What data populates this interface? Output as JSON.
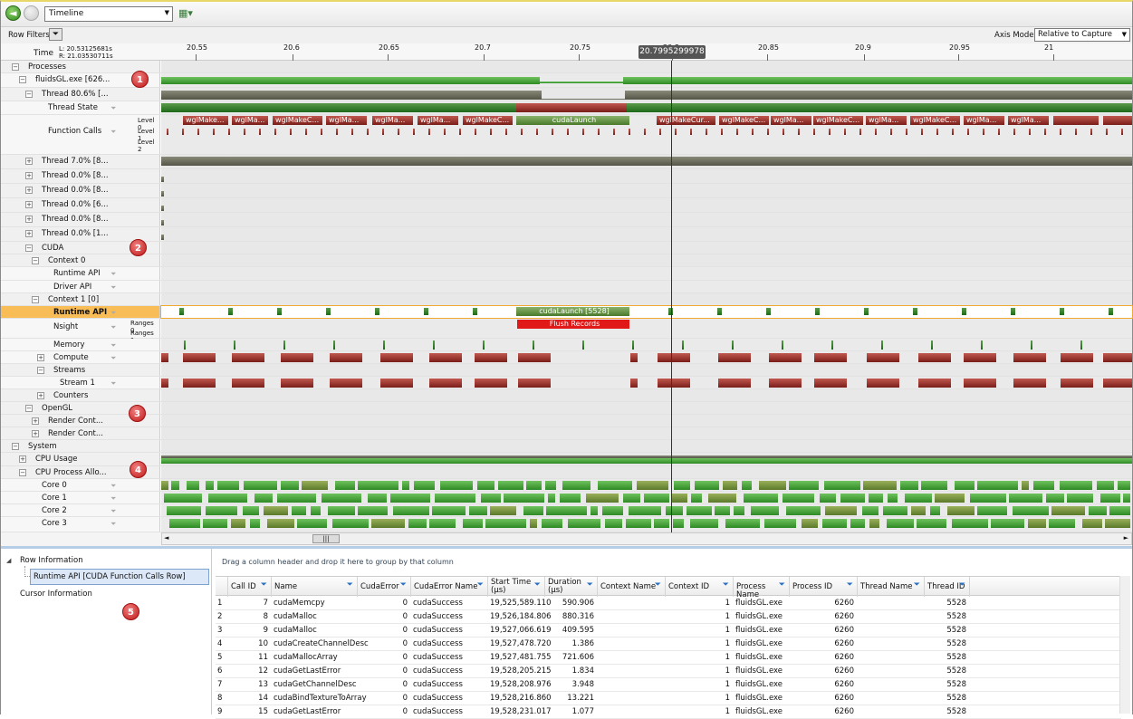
{
  "toolbar": {
    "view_selected": "Timeline"
  },
  "rowfilters": {
    "label": "Row Filters",
    "axis_mode_label": "Axis Mode:",
    "axis_mode_value": "Relative to Capture"
  },
  "timescale": {
    "label": "Time",
    "left": "L: 20.53125681s",
    "right": "R: 21.03530711s",
    "ticks": [
      "20.55",
      "20.6",
      "20.65",
      "20.7",
      "20.75",
      "20.8",
      "20.85",
      "20.9",
      "20.95",
      "21"
    ],
    "cursor": "20.7995299978"
  },
  "rows": {
    "processes": "Processes",
    "fluidsgl": "fluidsGL.exe [626...",
    "thread_main": "Thread 80.6% [...",
    "thread_state": "Thread State",
    "function_calls": "Function Calls",
    "level0": "Level 0",
    "level1": "Level 1",
    "level2": "Level 2",
    "thread_a": "Thread 7.0% [8...",
    "thread_b": "Thread 0.0% [8...",
    "thread_c": "Thread 0.0% [8...",
    "thread_d": "Thread 0.0% [6...",
    "thread_e": "Thread 0.0% [8...",
    "thread_f": "Thread 0.0% [1...",
    "cuda": "CUDA",
    "context0": "Context 0",
    "runtime_api0": "Runtime API",
    "driver_api": "Driver API",
    "context1": "Context 1 [0]",
    "runtime_api1": "Runtime API",
    "nsight": "Nsight",
    "ranges0": "Ranges 0",
    "ranges1": "Ranges 1",
    "memory": "Memory",
    "compute": "Compute",
    "streams": "Streams",
    "stream1": "Stream 1",
    "counters": "Counters",
    "opengl": "OpenGL",
    "render1": "Render Cont...",
    "render2": "Render Cont...",
    "system": "System",
    "cpu_usage": "CPU Usage",
    "cpu_alloc": "CPU Process Allo...",
    "core0": "Core 0",
    "core1": "Core 1",
    "core2": "Core 2",
    "core3": "Core 3"
  },
  "function_call_labels": [
    "wglMake...",
    "wglMa...",
    "wglMakeC...",
    "wglMa...",
    "wglMa...",
    "wglMa...",
    "wglMakeC...",
    "cudaLaunch",
    "wglMakeCur...",
    "wglMakeC...",
    "wglMa...",
    "wglMakeC...",
    "wglMa...",
    "wglMakeC...",
    "wglMa...",
    "wglMa..."
  ],
  "runtime_block": "cudaLaunch [5528]",
  "nsight_block": "Flush Records",
  "badges": [
    "1",
    "2",
    "3",
    "4",
    "5"
  ],
  "bottom": {
    "tree": {
      "row_info": "Row Information",
      "selected": "Runtime API [CUDA Function Calls Row]",
      "cursor_info": "Cursor Information"
    },
    "group_hint": "Drag a column header and drop it here to group by that column",
    "columns": [
      "Call ID",
      "Name",
      "CudaError",
      "CudaError Name",
      "Start Time (μs)",
      "Duration (μs)",
      "Context Name",
      "Context ID",
      "Process Name",
      "Process ID",
      "Thread Name",
      "Thread ID"
    ],
    "rows": [
      [
        "1",
        "7",
        "cudaMemcpy",
        "0",
        "cudaSuccess",
        "19,525,589.110",
        "590.906",
        "",
        "1",
        "fluidsGL.exe",
        "6260",
        "",
        "5528"
      ],
      [
        "2",
        "8",
        "cudaMalloc",
        "0",
        "cudaSuccess",
        "19,526,184.806",
        "880.316",
        "",
        "1",
        "fluidsGL.exe",
        "6260",
        "",
        "5528"
      ],
      [
        "3",
        "9",
        "cudaMalloc",
        "0",
        "cudaSuccess",
        "19,527,066.619",
        "409.595",
        "",
        "1",
        "fluidsGL.exe",
        "6260",
        "",
        "5528"
      ],
      [
        "4",
        "10",
        "cudaCreateChannelDesc",
        "0",
        "cudaSuccess",
        "19,527,478.720",
        "1.386",
        "",
        "1",
        "fluidsGL.exe",
        "6260",
        "",
        "5528"
      ],
      [
        "5",
        "11",
        "cudaMallocArray",
        "0",
        "cudaSuccess",
        "19,527,481.755",
        "721.606",
        "",
        "1",
        "fluidsGL.exe",
        "6260",
        "",
        "5528"
      ],
      [
        "6",
        "12",
        "cudaGetLastError",
        "0",
        "cudaSuccess",
        "19,528,205.215",
        "1.834",
        "",
        "1",
        "fluidsGL.exe",
        "6260",
        "",
        "5528"
      ],
      [
        "7",
        "13",
        "cudaGetChannelDesc",
        "0",
        "cudaSuccess",
        "19,528,208.976",
        "3.948",
        "",
        "1",
        "fluidsGL.exe",
        "6260",
        "",
        "5528"
      ],
      [
        "8",
        "14",
        "cudaBindTextureToArray",
        "0",
        "cudaSuccess",
        "19,528,216.860",
        "13.221",
        "",
        "1",
        "fluidsGL.exe",
        "6260",
        "",
        "5528"
      ],
      [
        "9",
        "15",
        "cudaGetLastError",
        "0",
        "cudaSuccess",
        "19,528,231.017",
        "1.077",
        "",
        "1",
        "fluidsGL.exe",
        "6260",
        "",
        "5528"
      ]
    ]
  }
}
